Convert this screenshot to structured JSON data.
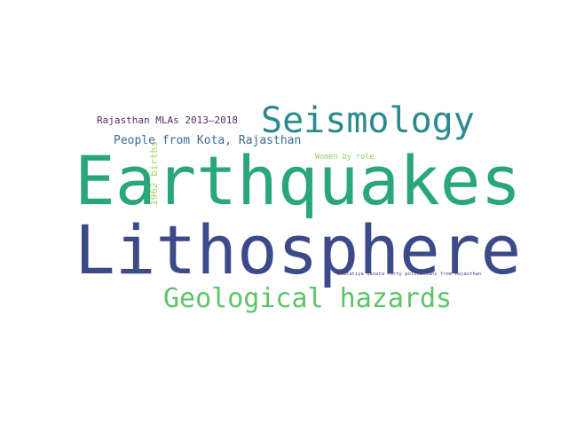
{
  "cloud": {
    "words": {
      "earthquakes": {
        "text": "Earthquakes",
        "color": "#29a67e"
      },
      "lithosphere": {
        "text": "Lithosphere",
        "color": "#3c4a8a"
      },
      "seismology": {
        "text": "Seismology",
        "color": "#2a8a8c"
      },
      "geological_hazards": {
        "text": "Geological hazards",
        "color": "#5cc467"
      },
      "people_from_kota": {
        "text": "People from Kota, Rajasthan",
        "color": "#3a6a95"
      },
      "rajasthan_mlas": {
        "text": "Rajasthan MLAs 2013–2018",
        "color": "#4e2a6e"
      },
      "women_by_role": {
        "text": "Women by role",
        "color": "#8fd15a"
      },
      "births_1962": {
        "text": "1962 births",
        "color": "#9ed660"
      },
      "bjp_politicians": {
        "text": "Bharatiya Janata Party politicians from Rajasthan",
        "color": "#4a3d7a"
      }
    }
  }
}
